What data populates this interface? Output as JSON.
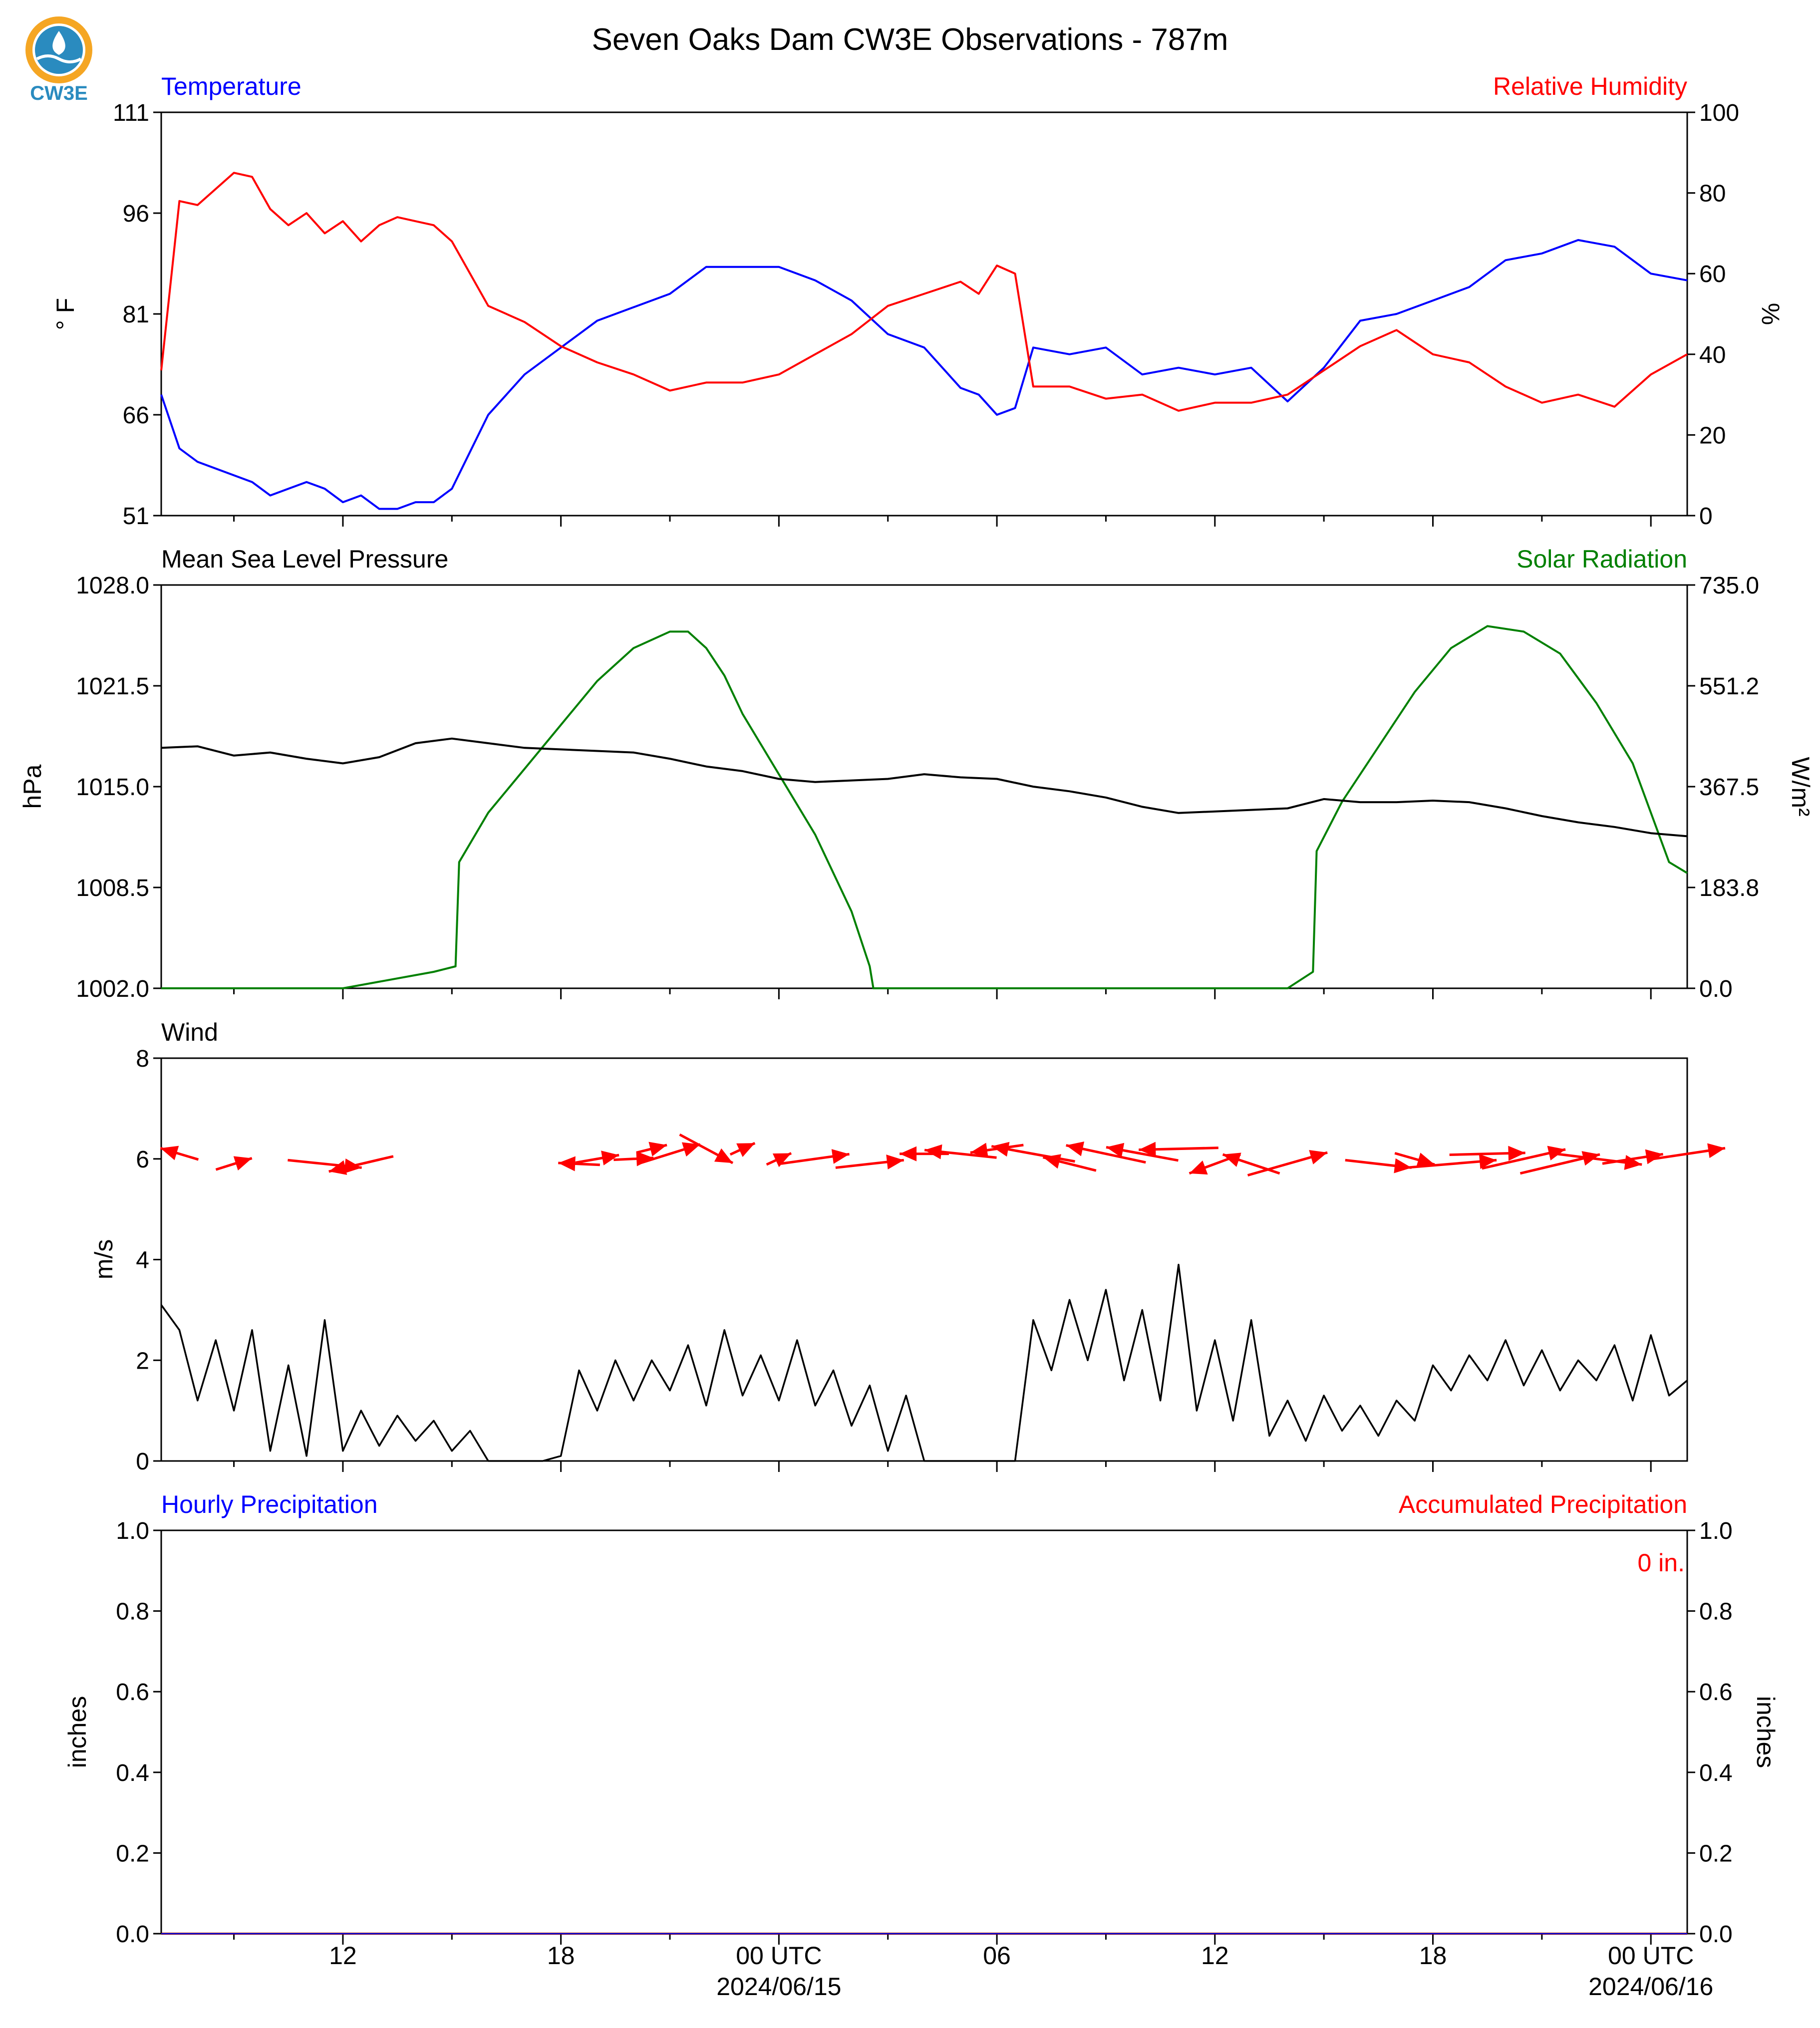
{
  "title": "Seven Oaks Dam CW3E Observations - 787m",
  "logo": {
    "text": "CW3E",
    "colors": {
      "ring": "#f5a623",
      "drop": "#2a8bbf",
      "wave": "#1f6e9b"
    }
  },
  "colors": {
    "blue": "#0000ff",
    "red": "#ff0000",
    "green": "#008000",
    "black": "#000000"
  },
  "time_axis": {
    "hour_ticks": [
      "12",
      "18",
      "00 UTC",
      "06",
      "12",
      "18",
      "00 UTC"
    ],
    "date_labels": {
      "d1": "2024/06/15",
      "d2": "2024/06/16"
    }
  },
  "chart_data": [
    {
      "type": "line",
      "panel": "temperature_humidity",
      "left_title": "Temperature",
      "right_title": "Relative Humidity",
      "ylabel_left": "° F",
      "ylabel_right": "%",
      "ylim_left": [
        51,
        111
      ],
      "ylim_right": [
        0,
        100
      ],
      "yticks_left": [
        "51",
        "66",
        "81",
        "96",
        "111"
      ],
      "yticks_right": [
        "0",
        "20",
        "40",
        "60",
        "80",
        "100"
      ],
      "x_hours_utc": [
        -17,
        -16.5,
        -16,
        -15,
        -14.5,
        -14,
        -13.5,
        -13,
        -12.5,
        -12,
        -11.5,
        -11,
        -10.5,
        -10,
        -9.5,
        -9,
        -8,
        -7,
        -6,
        -5,
        -4,
        -3,
        -2,
        -1,
        0,
        1,
        2,
        3,
        4,
        5,
        5.5,
        6,
        6.5,
        7,
        8,
        9,
        10,
        11,
        12,
        13,
        14,
        15,
        16,
        17,
        18,
        19,
        20,
        21,
        22,
        23,
        24,
        25
      ],
      "series": [
        {
          "name": "Temperature",
          "values": [
            69,
            61,
            59,
            57,
            56,
            54,
            55,
            56,
            55,
            53,
            54,
            52,
            52,
            53,
            53,
            55,
            66,
            72,
            76,
            80,
            82,
            84,
            88,
            88,
            88,
            86,
            83,
            78,
            76,
            70,
            69,
            66,
            67,
            76,
            75,
            76,
            72,
            73,
            72,
            73,
            68,
            73,
            80,
            81,
            83,
            85,
            89,
            90,
            92,
            91,
            87,
            86
          ]
        },
        {
          "name": "Relative Humidity",
          "values": [
            36,
            78,
            77,
            85,
            84,
            76,
            72,
            75,
            70,
            73,
            68,
            72,
            74,
            73,
            72,
            68,
            52,
            48,
            42,
            38,
            35,
            31,
            33,
            33,
            35,
            40,
            45,
            52,
            55,
            58,
            55,
            62,
            60,
            32,
            32,
            29,
            30,
            26,
            28,
            28,
            30,
            36,
            42,
            46,
            40,
            38,
            32,
            28,
            30,
            27,
            35,
            40
          ]
        }
      ]
    },
    {
      "type": "line",
      "panel": "pressure_solar",
      "left_title": "Mean Sea Level Pressure",
      "right_title": "Solar Radiation",
      "ylabel_left": "hPa",
      "ylabel_right": "W/m²",
      "ylim_left": [
        1002.0,
        1028.0
      ],
      "ylim_right": [
        0.0,
        735.0
      ],
      "yticks_left": [
        "1002.0",
        "1008.5",
        "1015.0",
        "1021.5",
        "1028.0"
      ],
      "yticks_right": [
        "0.0",
        "183.8",
        "367.5",
        "551.2",
        "735.0"
      ],
      "pressure": {
        "name": "Mean Sea Level Pressure",
        "x_hours_utc": [
          -17,
          -16,
          -15,
          -14,
          -13,
          -12,
          -11,
          -10,
          -9,
          -8,
          -7,
          -6,
          -5,
          -4,
          -3,
          -2,
          -1,
          0,
          1,
          2,
          3,
          4,
          5,
          6,
          7,
          8,
          9,
          10,
          11,
          12,
          13,
          14,
          15,
          16,
          17,
          18,
          19,
          20,
          21,
          22,
          23,
          24,
          25
        ],
        "values": [
          1017.5,
          1017.6,
          1017.0,
          1017.2,
          1016.8,
          1016.5,
          1016.9,
          1017.8,
          1018.1,
          1017.8,
          1017.5,
          1017.4,
          1017.3,
          1017.2,
          1016.8,
          1016.3,
          1016.0,
          1015.5,
          1015.3,
          1015.4,
          1015.5,
          1015.8,
          1015.6,
          1015.5,
          1015.0,
          1014.7,
          1014.3,
          1013.7,
          1013.3,
          1013.4,
          1013.5,
          1013.6,
          1014.2,
          1014.0,
          1014.0,
          1014.1,
          1014.0,
          1013.6,
          1013.1,
          1012.7,
          1012.4,
          1012.0,
          1011.8
        ]
      },
      "solar": {
        "name": "Solar Radiation",
        "x_hours_utc": [
          -17,
          -12,
          -9.5,
          -8.9,
          -8.8,
          -8,
          -7,
          -6,
          -5,
          -4,
          -3,
          -2.5,
          -2,
          -1.5,
          -1,
          0,
          1,
          2,
          2.5,
          2.6,
          14,
          14.7,
          14.8,
          15.5,
          16.5,
          17.5,
          18.5,
          19.5,
          20.5,
          21.5,
          22.5,
          23.5,
          24.5,
          25
        ],
        "values": [
          0,
          0,
          30,
          40,
          230,
          320,
          400,
          480,
          560,
          620,
          650,
          650,
          620,
          570,
          500,
          390,
          280,
          140,
          40,
          0,
          0,
          30,
          250,
          340,
          440,
          540,
          620,
          660,
          650,
          610,
          520,
          410,
          230,
          210
        ]
      }
    },
    {
      "type": "line",
      "panel": "wind",
      "left_title": "Wind",
      "ylabel_left": "m/s",
      "ylim_left": [
        0,
        8
      ],
      "yticks_left": [
        "0",
        "2",
        "4",
        "6",
        "8"
      ],
      "speed": {
        "name": "Wind",
        "x_hours_utc": [
          -17,
          -16.5,
          -16,
          -15.5,
          -15,
          -14.5,
          -14,
          -13.5,
          -13,
          -12.5,
          -12,
          -11.5,
          -11,
          -10.5,
          -10,
          -9.5,
          -9,
          -8.5,
          -8,
          -7.5,
          -7,
          -6.5,
          -6,
          -5.5,
          -5,
          -4.5,
          -4,
          -3.5,
          -3,
          -2.5,
          -2,
          -1.5,
          -1,
          -0.5,
          0,
          0.5,
          1,
          1.5,
          2,
          2.5,
          3,
          3.5,
          4,
          4.5,
          5,
          5.5,
          6,
          6.5,
          7,
          7.5,
          8,
          8.5,
          9,
          9.5,
          10,
          10.5,
          11,
          11.5,
          12,
          12.5,
          13,
          13.5,
          14,
          14.5,
          15,
          15.5,
          16,
          16.5,
          17,
          17.5,
          18,
          18.5,
          19,
          19.5,
          20,
          20.5,
          21,
          21.5,
          22,
          22.5,
          23,
          23.5,
          24,
          24.5,
          25
        ],
        "values": [
          3.1,
          2.6,
          1.2,
          2.4,
          1.0,
          2.6,
          0.2,
          1.9,
          0.1,
          2.8,
          0.2,
          1.0,
          0.3,
          0.9,
          0.4,
          0.8,
          0.2,
          0.6,
          0,
          0,
          0,
          0,
          0.1,
          1.8,
          1.0,
          2.0,
          1.2,
          2.0,
          1.4,
          2.3,
          1.1,
          2.6,
          1.3,
          2.1,
          1.2,
          2.4,
          1.1,
          1.8,
          0.7,
          1.5,
          0.2,
          1.3,
          0,
          0,
          0,
          0,
          0,
          0,
          2.8,
          1.8,
          3.2,
          2.0,
          3.4,
          1.6,
          3.0,
          1.2,
          3.9,
          1.0,
          2.4,
          0.8,
          2.8,
          0.5,
          1.2,
          0.4,
          1.3,
          0.6,
          1.1,
          0.5,
          1.2,
          0.8,
          1.9,
          1.4,
          2.1,
          1.6,
          2.4,
          1.5,
          2.2,
          1.4,
          2.0,
          1.6,
          2.3,
          1.2,
          2.5,
          1.3,
          1.6
        ]
      },
      "direction_arrows": {
        "note_units": "u, v in m/s (pointing toward)",
        "x_hours_utc": [
          -16.5,
          -15,
          -12.5,
          -11.5,
          -5.5,
          -5,
          -4,
          -3.5,
          -3,
          -2,
          -1,
          0,
          1,
          2.5,
          4,
          5,
          6,
          7,
          8,
          9,
          10,
          11,
          12,
          13,
          14,
          16.5,
          17.5,
          18.5,
          19.5,
          20.5,
          21.5,
          22.5,
          23.5,
          25
        ],
        "y_position": [
          6.1,
          5.9,
          5.9,
          5.9,
          5.9,
          6.0,
          6.0,
          6.2,
          6.1,
          6.2,
          6.2,
          6.0,
          6.0,
          5.9,
          6.1,
          6.1,
          6.2,
          6.1,
          5.9,
          6.1,
          6.1,
          6.2,
          5.9,
          5.9,
          5.9,
          5.9,
          6.0,
          5.9,
          6.1,
          6.0,
          5.9,
          6.0,
          6.0,
          6.1
        ],
        "u": [
          -2,
          1.9,
          3.9,
          -3.4,
          -2.2,
          2.3,
          2.1,
          1.6,
          3.2,
          2.8,
          1.3,
          1.3,
          3.6,
          3.6,
          -2.6,
          -3.8,
          -2.8,
          -4.4,
          -2.8,
          -4.2,
          -3.8,
          -4.2,
          -2.7,
          -3.0,
          4.2,
          3.5,
          2.1,
          4.8,
          4.0,
          4.4,
          4.2,
          4.8,
          3.2,
          4.0
        ],
        "v": [
          0.6,
          0.6,
          -0.4,
          -0.8,
          0.1,
          0.4,
          0.1,
          0.4,
          1.0,
          -1.5,
          0.6,
          0.6,
          0.5,
          0.4,
          0.0,
          0.4,
          -0.4,
          0.8,
          0.7,
          0.9,
          0.7,
          -0.1,
          -1.0,
          1.0,
          1.2,
          -0.4,
          -0.6,
          0.4,
          0.1,
          1.0,
          1.0,
          -0.6,
          0.5,
          0.6
        ]
      }
    },
    {
      "type": "line",
      "panel": "precipitation",
      "left_title": "Hourly Precipitation",
      "right_title": "Accumulated Precipitation",
      "ylabel_left": "inches",
      "ylabel_right": "inches",
      "ylim_left": [
        0.0,
        1.0
      ],
      "ylim_right": [
        0.0,
        1.0
      ],
      "yticks_left": [
        "0.0",
        "0.2",
        "0.4",
        "0.6",
        "0.8",
        "1.0"
      ],
      "yticks_right": [
        "0.0",
        "0.2",
        "0.4",
        "0.6",
        "0.8",
        "1.0"
      ],
      "accumulated_label": "0 in.",
      "series": [
        {
          "name": "Hourly Precipitation",
          "values": [
            0,
            0
          ]
        },
        {
          "name": "Accumulated Precipitation",
          "values": [
            0,
            0
          ]
        }
      ],
      "x_hours_utc": [
        -17,
        25
      ]
    }
  ]
}
